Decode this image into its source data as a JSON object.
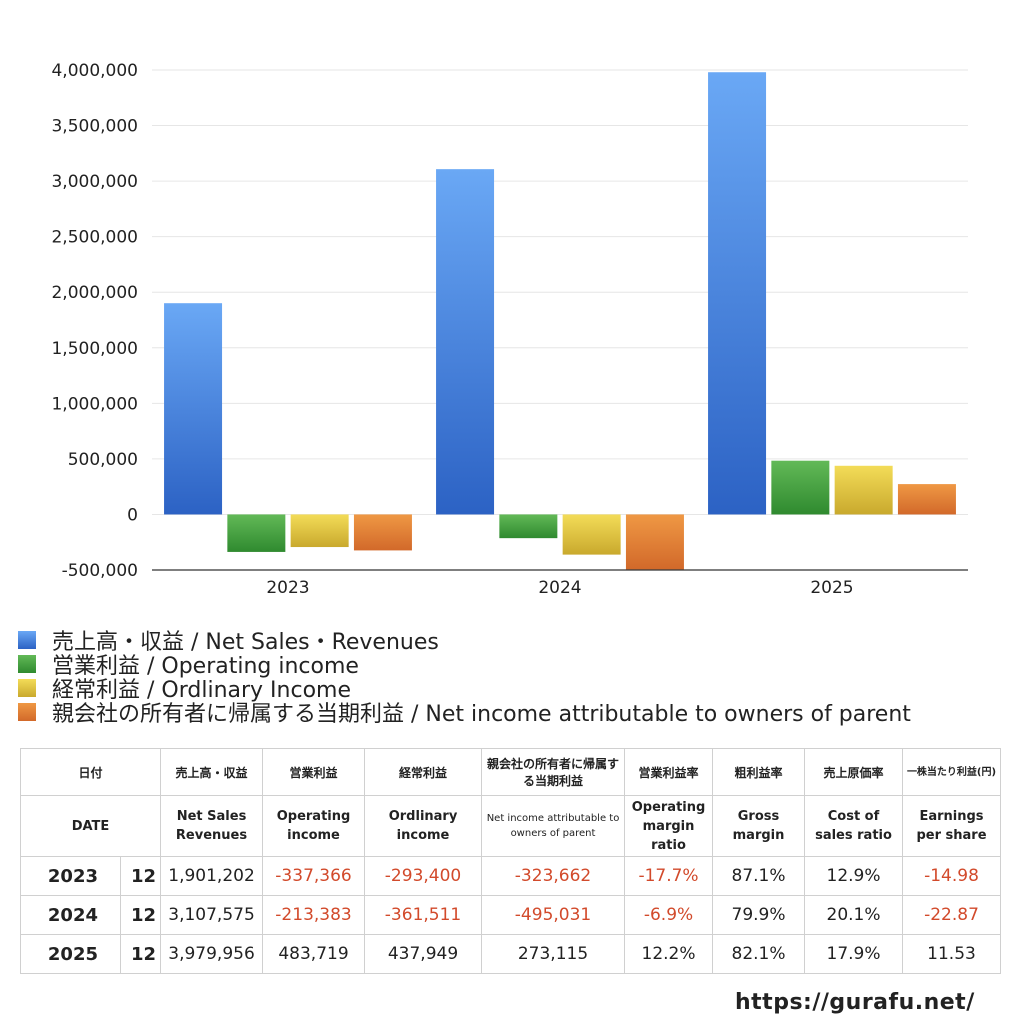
{
  "chart_data": {
    "type": "bar",
    "categories": [
      "2023",
      "2024",
      "2025"
    ],
    "series": [
      {
        "name": "売上高・収益 / Net Sales・Revenues",
        "values": [
          1901202,
          3107575,
          3979956
        ]
      },
      {
        "name": "営業利益 / Operating income",
        "values": [
          -337366,
          -213383,
          483719
        ]
      },
      {
        "name": "経常利益 / Ordlinary Income",
        "values": [
          -293400,
          -361511,
          437949
        ]
      },
      {
        "name": "親会社の所有者に帰属する当期利益 / Net income attributable to owners of parent",
        "values": [
          -323662,
          -495031,
          273115
        ]
      }
    ],
    "ylim": [
      -500000,
      4000000
    ],
    "yticks": [
      -500000,
      0,
      500000,
      1000000,
      1500000,
      2000000,
      2500000,
      3000000,
      3500000,
      4000000
    ],
    "ytick_labels": [
      "-500,000",
      "0",
      "500,000",
      "1,000,000",
      "1,500,000",
      "2,000,000",
      "2,500,000",
      "3,000,000",
      "3,500,000",
      "4,000,000"
    ],
    "grid": true,
    "legend_position": "bottom"
  },
  "colors": {
    "series": [
      {
        "top": "#6aa8f5",
        "bottom": "#2c62c4"
      },
      {
        "top": "#62b957",
        "bottom": "#2f8a2f"
      },
      {
        "top": "#f3dc58",
        "bottom": "#c9a92d"
      },
      {
        "top": "#ef9844",
        "bottom": "#d2692a"
      }
    ],
    "negative_text": "#d24a2b"
  },
  "legend": [
    "売上高・収益 / Net Sales・Revenues",
    "営業利益 / Operating income",
    "経常利益 / Ordlinary Income",
    "親会社の所有者に帰属する当期利益 / Net income attributable to owners of parent"
  ],
  "table": {
    "header_jp": [
      "日付",
      "売上高・収益",
      "営業利益",
      "経常利益",
      "親会社の所有者に帰属する当期利益",
      "営業利益率",
      "粗利益率",
      "売上原価率",
      "一株当たり利益(円)"
    ],
    "header_en": [
      "DATE",
      "Net Sales Revenues",
      "Operating income",
      "Ordlinary income",
      "Net income attributable to owners of parent",
      "Operating margin ratio",
      "Gross margin",
      "Cost of sales ratio",
      "Earnings per share"
    ],
    "rows": [
      {
        "year": "2023",
        "month": "12",
        "sales": "1,901,202",
        "op": "-337,366",
        "ord": "-293,400",
        "net": "-323,662",
        "opm": "-17.7%",
        "gm": "87.1%",
        "cos": "12.9%",
        "eps": "-14.98"
      },
      {
        "year": "2024",
        "month": "12",
        "sales": "3,107,575",
        "op": "-213,383",
        "ord": "-361,511",
        "net": "-495,031",
        "opm": "-6.9%",
        "gm": "79.9%",
        "cos": "20.1%",
        "eps": "-22.87"
      },
      {
        "year": "2025",
        "month": "12",
        "sales": "3,979,956",
        "op": "483,719",
        "ord": "437,949",
        "net": "273,115",
        "opm": "12.2%",
        "gm": "82.1%",
        "cos": "17.9%",
        "eps": "11.53"
      }
    ]
  },
  "footer_url": "https://gurafu.net/"
}
